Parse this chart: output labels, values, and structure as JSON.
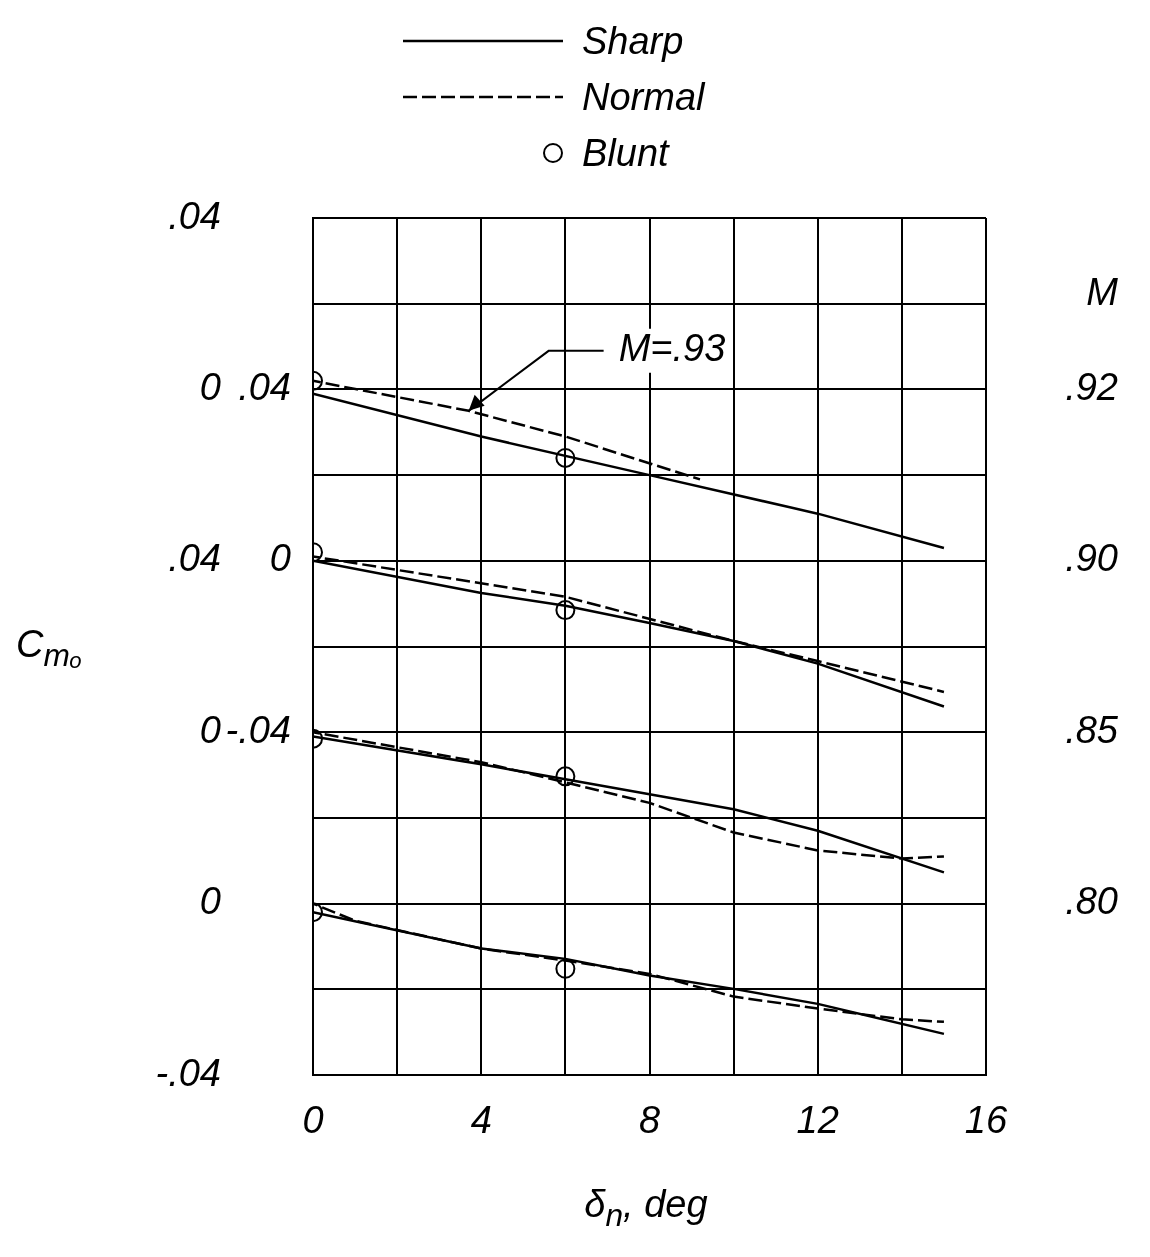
{
  "chart_data": [
    {
      "type": "line",
      "xlabel": "δ$_{n}$, deg",
      "ylabel": "C$_{mₒ}$",
      "legend": "top",
      "grid": true,
      "xlim": [
        0,
        16
      ],
      "xticks": [
        0,
        {
          "value": 2,
          "label": null
        },
        4,
        {
          "value": 6,
          "label": null
        },
        8,
        {
          "value": 10,
          "label": null
        },
        12,
        {
          "value": 14,
          "label": null
        },
        16
      ],
      "ylim": [
        -0.16,
        0.04
      ],
      "yticks": [
        {
          "value": -0.14,
          "label": null
        },
        {
          "value": -0.12,
          "label": null
        },
        {
          "value": -0.1,
          "label": null
        },
        {
          "value": -0.08,
          "label": null
        },
        {
          "value": -0.06,
          "label": null
        },
        {
          "value": -0.04,
          "label": null
        },
        {
          "value": -0.02,
          "label": null
        },
        {
          "value": 0,
          "label": "0"
        },
        {
          "value": 0.02,
          "label": null
        },
        {
          "value": 0.04,
          "label": ".04"
        }
      ],
      "annotations": [
        {
          "text": "M=.93",
          "x": 3.7,
          "y": -0.005
        },
        "M",
        ".92"
      ],
      "series": [
        {
          "name": "Sharp",
          "color": "#000000",
          "x": [
            0,
            4,
            8,
            12,
            15
          ],
          "values": [
            -0.001,
            -0.011,
            -0.02,
            -0.029,
            -0.037
          ]
        },
        {
          "name": "Normal",
          "line_style": "dashed",
          "color": "#000000",
          "x": [
            0,
            3.7,
            6,
            9.2
          ],
          "values": [
            0.002,
            -0.005,
            -0.011,
            -0.021
          ]
        },
        {
          "name": "Blunt",
          "type": "scatter",
          "marker": "circle",
          "color": "#000000",
          "x": [
            0,
            6
          ],
          "values": [
            0.002,
            -0.016
          ]
        }
      ]
    },
    {
      "type": "line",
      "tick_labels": "y",
      "xlim": [
        0,
        16
      ],
      "xticks": [
        0,
        4,
        8,
        12,
        16
      ],
      "ylim": [
        -0.12,
        0.08
      ],
      "yticks": [
        {
          "value": -0.04,
          "label": "-.04"
        },
        {
          "value": 0,
          "label": "0"
        },
        {
          "value": 0.04,
          "label": ".04"
        }
      ],
      "annotations": [
        ".90"
      ],
      "series": [
        {
          "color": "#000000",
          "x": [
            0,
            4,
            6,
            8,
            10,
            12,
            15
          ],
          "values": [
            0,
            -0.0075,
            -0.0105,
            -0.0145,
            -0.0187,
            -0.024,
            -0.034
          ]
        },
        {
          "line_style": "dashed",
          "color": "#000000",
          "x": [
            0,
            6,
            10,
            12,
            15
          ],
          "values": [
            0.001,
            -0.0084,
            -0.0187,
            -0.0234,
            -0.0306
          ]
        },
        {
          "type": "scatter",
          "marker": "circle",
          "color": "#000000",
          "x": [
            0,
            6
          ],
          "values": [
            0.002,
            -0.0115
          ]
        }
      ]
    },
    {
      "type": "line",
      "tick_labels": "y",
      "xlim": [
        0,
        16
      ],
      "xticks": [
        0,
        4,
        8,
        12,
        16
      ],
      "ylim": [
        -0.08,
        0.12
      ],
      "yticks": [
        {
          "value": 0,
          "label": "0"
        },
        {
          "value": 0.04,
          "label": ".04"
        }
      ],
      "annotations": [
        ".85"
      ],
      "series": [
        {
          "color": "#000000",
          "x": [
            0,
            4,
            6,
            8,
            10,
            12,
            15
          ],
          "values": [
            -0.001,
            -0.0075,
            -0.011,
            -0.0145,
            -0.018,
            -0.023,
            -0.0327
          ]
        },
        {
          "line_style": "dashed",
          "color": "#000000",
          "x": [
            0,
            4,
            6,
            8,
            10,
            12,
            14,
            15
          ],
          "values": [
            0,
            -0.007,
            -0.0117,
            -0.0165,
            -0.0234,
            -0.0276,
            -0.0295,
            -0.029
          ]
        },
        {
          "type": "scatter",
          "marker": "circle",
          "color": "#000000",
          "x": [
            0,
            6
          ],
          "values": [
            -0.0015,
            -0.0103
          ]
        }
      ]
    },
    {
      "type": "line",
      "tick_labels": "y",
      "xlim": [
        0,
        16
      ],
      "xticks": [
        0,
        4,
        8,
        12,
        16
      ],
      "ylim": [
        -0.04,
        0.16
      ],
      "yticks": [
        {
          "value": -0.04,
          "label": "-.04"
        },
        {
          "value": 0,
          "label": "0"
        }
      ],
      "annotations": [
        ".80"
      ],
      "series": [
        {
          "color": "#000000",
          "x": [
            0,
            4,
            6,
            8,
            10,
            12,
            15
          ],
          "values": [
            -0.002,
            -0.0105,
            -0.0129,
            -0.0168,
            -0.0199,
            -0.0234,
            -0.0304
          ]
        },
        {
          "line_style": "dashed",
          "color": "#000000",
          "x": [
            0,
            1,
            4,
            6,
            8,
            10,
            12,
            14,
            15
          ],
          "values": [
            0,
            -0.004,
            -0.0105,
            -0.0133,
            -0.0164,
            -0.0217,
            -0.0245,
            -0.027,
            -0.0276
          ]
        },
        {
          "type": "scatter",
          "marker": "circle",
          "color": "#000000",
          "x": [
            0,
            6
          ],
          "values": [
            -0.002,
            -0.0152
          ]
        }
      ]
    }
  ]
}
